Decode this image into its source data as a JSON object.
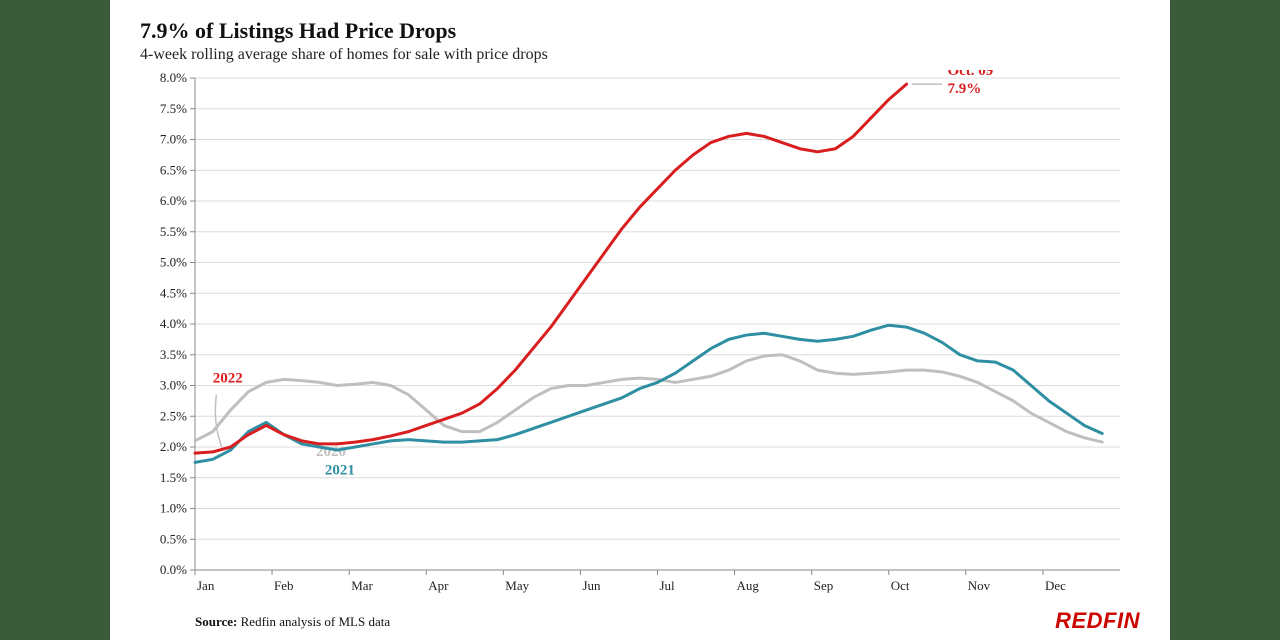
{
  "title": "7.9% of Listings Had Price Drops",
  "subtitle": "4-week rolling average share of homes for sale with price drops",
  "source_label": "Source:",
  "source_text": "Redfin analysis of MLS data",
  "logo_text": "REDFIN",
  "chart": {
    "type": "line",
    "background_color": "#ffffff",
    "grid_color": "#dcdcdc",
    "axis_color": "#888888",
    "tick_font_size": 13,
    "tick_color": "#222222",
    "x_bounds": [
      0,
      52
    ],
    "x_ticks": [
      {
        "pos": 0,
        "label": "Jan"
      },
      {
        "pos": 4.33,
        "label": "Feb"
      },
      {
        "pos": 8.67,
        "label": "Mar"
      },
      {
        "pos": 13.0,
        "label": "Apr"
      },
      {
        "pos": 17.33,
        "label": "May"
      },
      {
        "pos": 21.67,
        "label": "Jun"
      },
      {
        "pos": 26.0,
        "label": "Jul"
      },
      {
        "pos": 30.33,
        "label": "Aug"
      },
      {
        "pos": 34.67,
        "label": "Sep"
      },
      {
        "pos": 39.0,
        "label": "Oct"
      },
      {
        "pos": 43.33,
        "label": "Nov"
      },
      {
        "pos": 47.67,
        "label": "Dec"
      }
    ],
    "ylim": [
      0.0,
      8.0
    ],
    "ytick_step": 0.5,
    "y_tick_format": "pct1",
    "line_width": 3,
    "series": [
      {
        "name": "2020",
        "color": "#bfbfbf",
        "label": "2020",
        "label_xy": [
          6.8,
          1.85
        ],
        "label_font_size": 15,
        "label_weight": "bold",
        "data": [
          [
            0,
            2.1
          ],
          [
            1,
            2.25
          ],
          [
            2,
            2.6
          ],
          [
            3,
            2.9
          ],
          [
            4,
            3.05
          ],
          [
            5,
            3.1
          ],
          [
            6,
            3.08
          ],
          [
            7,
            3.05
          ],
          [
            8,
            3.0
          ],
          [
            9,
            3.02
          ],
          [
            10,
            3.05
          ],
          [
            11,
            3.0
          ],
          [
            12,
            2.85
          ],
          [
            13,
            2.6
          ],
          [
            14,
            2.35
          ],
          [
            15,
            2.25
          ],
          [
            16,
            2.25
          ],
          [
            17,
            2.4
          ],
          [
            18,
            2.6
          ],
          [
            19,
            2.8
          ],
          [
            20,
            2.95
          ],
          [
            21,
            3.0
          ],
          [
            22,
            3.0
          ],
          [
            23,
            3.05
          ],
          [
            24,
            3.1
          ],
          [
            25,
            3.12
          ],
          [
            26,
            3.1
          ],
          [
            27,
            3.05
          ],
          [
            28,
            3.1
          ],
          [
            29,
            3.15
          ],
          [
            30,
            3.25
          ],
          [
            31,
            3.4
          ],
          [
            32,
            3.48
          ],
          [
            33,
            3.5
          ],
          [
            34,
            3.4
          ],
          [
            35,
            3.25
          ],
          [
            36,
            3.2
          ],
          [
            37,
            3.18
          ],
          [
            38,
            3.2
          ],
          [
            39,
            3.22
          ],
          [
            40,
            3.25
          ],
          [
            41,
            3.25
          ],
          [
            42,
            3.22
          ],
          [
            43,
            3.15
          ],
          [
            44,
            3.05
          ],
          [
            45,
            2.9
          ],
          [
            46,
            2.75
          ],
          [
            47,
            2.55
          ],
          [
            48,
            2.4
          ],
          [
            49,
            2.25
          ],
          [
            50,
            2.15
          ],
          [
            51,
            2.08
          ]
        ]
      },
      {
        "name": "2021",
        "color": "#2e8fa3",
        "label": "2021",
        "label_xy": [
          7.3,
          1.55
        ],
        "label_font_size": 15,
        "label_weight": "bold",
        "data": [
          [
            0,
            1.75
          ],
          [
            1,
            1.8
          ],
          [
            2,
            1.95
          ],
          [
            3,
            2.25
          ],
          [
            4,
            2.4
          ],
          [
            5,
            2.2
          ],
          [
            6,
            2.05
          ],
          [
            7,
            2.0
          ],
          [
            8,
            1.95
          ],
          [
            9,
            2.0
          ],
          [
            10,
            2.05
          ],
          [
            11,
            2.1
          ],
          [
            12,
            2.12
          ],
          [
            13,
            2.1
          ],
          [
            14,
            2.08
          ],
          [
            15,
            2.08
          ],
          [
            16,
            2.1
          ],
          [
            17,
            2.12
          ],
          [
            18,
            2.2
          ],
          [
            19,
            2.3
          ],
          [
            20,
            2.4
          ],
          [
            21,
            2.5
          ],
          [
            22,
            2.6
          ],
          [
            23,
            2.7
          ],
          [
            24,
            2.8
          ],
          [
            25,
            2.95
          ],
          [
            26,
            3.05
          ],
          [
            27,
            3.2
          ],
          [
            28,
            3.4
          ],
          [
            29,
            3.6
          ],
          [
            30,
            3.75
          ],
          [
            31,
            3.82
          ],
          [
            32,
            3.85
          ],
          [
            33,
            3.8
          ],
          [
            34,
            3.75
          ],
          [
            35,
            3.72
          ],
          [
            36,
            3.75
          ],
          [
            37,
            3.8
          ],
          [
            38,
            3.9
          ],
          [
            39,
            3.98
          ],
          [
            40,
            3.95
          ],
          [
            41,
            3.85
          ],
          [
            42,
            3.7
          ],
          [
            43,
            3.5
          ],
          [
            44,
            3.4
          ],
          [
            45,
            3.38
          ],
          [
            46,
            3.25
          ],
          [
            47,
            3.0
          ],
          [
            48,
            2.75
          ],
          [
            49,
            2.55
          ],
          [
            50,
            2.35
          ],
          [
            51,
            2.22
          ]
        ]
      },
      {
        "name": "2022",
        "color": "#d81e1e",
        "label": "2022",
        "label_xy": [
          1.0,
          3.05
        ],
        "label_font_size": 15,
        "label_weight": "bold",
        "label_leader": {
          "from": [
            1.2,
            2.85
          ],
          "mid": [
            1.0,
            2.4
          ],
          "to": [
            1.5,
            2.0
          ]
        },
        "data": [
          [
            0,
            1.9
          ],
          [
            1,
            1.92
          ],
          [
            2,
            2.0
          ],
          [
            3,
            2.2
          ],
          [
            4,
            2.35
          ],
          [
            5,
            2.2
          ],
          [
            6,
            2.1
          ],
          [
            7,
            2.05
          ],
          [
            8,
            2.05
          ],
          [
            9,
            2.08
          ],
          [
            10,
            2.12
          ],
          [
            11,
            2.18
          ],
          [
            12,
            2.25
          ],
          [
            13,
            2.35
          ],
          [
            14,
            2.45
          ],
          [
            15,
            2.55
          ],
          [
            16,
            2.7
          ],
          [
            17,
            2.95
          ],
          [
            18,
            3.25
          ],
          [
            19,
            3.6
          ],
          [
            20,
            3.95
          ],
          [
            21,
            4.35
          ],
          [
            22,
            4.75
          ],
          [
            23,
            5.15
          ],
          [
            24,
            5.55
          ],
          [
            25,
            5.9
          ],
          [
            26,
            6.2
          ],
          [
            27,
            6.5
          ],
          [
            28,
            6.75
          ],
          [
            29,
            6.95
          ],
          [
            30,
            7.05
          ],
          [
            31,
            7.1
          ],
          [
            32,
            7.05
          ],
          [
            33,
            6.95
          ],
          [
            34,
            6.85
          ],
          [
            35,
            6.8
          ],
          [
            36,
            6.85
          ],
          [
            37,
            7.05
          ],
          [
            38,
            7.35
          ],
          [
            39,
            7.65
          ],
          [
            40,
            7.9
          ]
        ],
        "leader_arrow": {
          "from": [
            42.0,
            7.9
          ],
          "to": [
            40.3,
            7.9
          ],
          "color": "#bfbfbf"
        },
        "end_annotation": {
          "lines": [
            "Oct. 09",
            "7.9%"
          ],
          "xy": [
            42.3,
            8.05
          ],
          "font_size": 15,
          "font_weight": "bold",
          "color": "#d81e1e"
        }
      }
    ]
  }
}
